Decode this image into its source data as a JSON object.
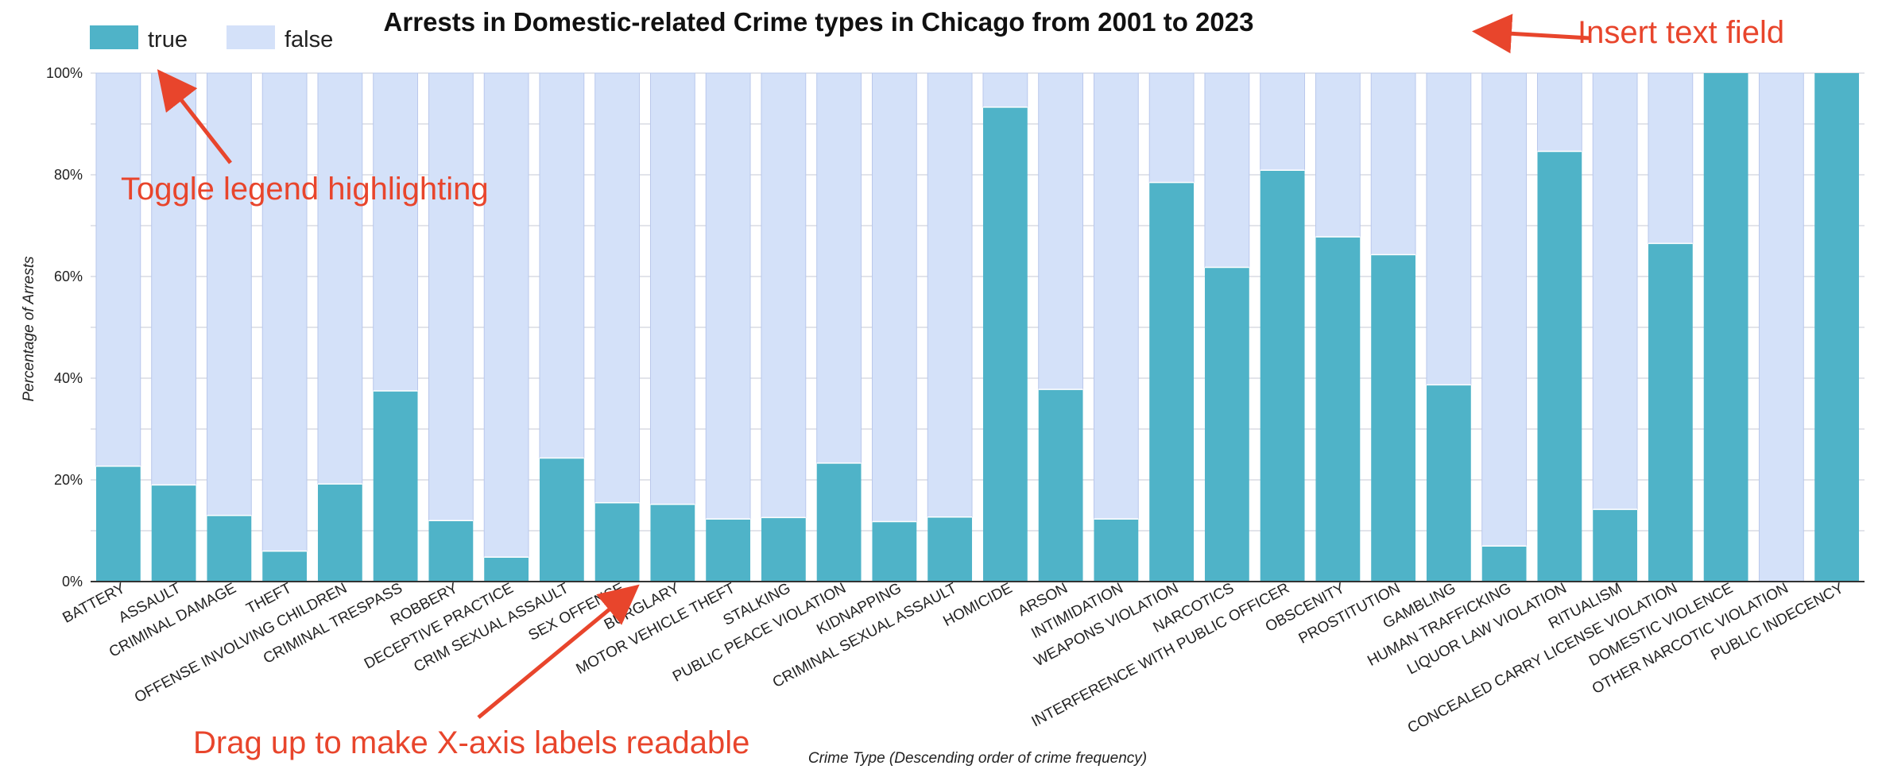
{
  "chart_data": {
    "type": "bar",
    "stacked": true,
    "title": "Arrests in Domestic-related Crime types in Chicago from 2001 to 2023",
    "xlabel": "Crime Type (Descending order of crime frequency)",
    "ylabel": "Percentage of Arrests",
    "ylim": [
      0,
      100
    ],
    "y_ticks": [
      "0%",
      "20%",
      "40%",
      "60%",
      "80%",
      "100%"
    ],
    "grid": true,
    "legend_position": "top-left",
    "colors": {
      "true": "#4fb3c8",
      "false": "#d4e1f9",
      "annotation": "#e8452c",
      "grid": "#c5cad6"
    },
    "categories": [
      "BATTERY",
      "ASSAULT",
      "CRIMINAL DAMAGE",
      "THEFT",
      "OFFENSE INVOLVING CHILDREN",
      "CRIMINAL TRESPASS",
      "ROBBERY",
      "DECEPTIVE PRACTICE",
      "CRIM SEXUAL ASSAULT",
      "SEX OFFENSE",
      "BURGLARY",
      "MOTOR VEHICLE THEFT",
      "STALKING",
      "PUBLIC PEACE VIOLATION",
      "KIDNAPPING",
      "CRIMINAL SEXUAL ASSAULT",
      "HOMICIDE",
      "ARSON",
      "INTIMIDATION",
      "WEAPONS VIOLATION",
      "NARCOTICS",
      "INTERFERENCE WITH PUBLIC OFFICER",
      "OBSCENITY",
      "PROSTITUTION",
      "GAMBLING",
      "HUMAN TRAFFICKING",
      "LIQUOR LAW VIOLATION",
      "RITUALISM",
      "CONCEALED CARRY LICENSE VIOLATION",
      "DOMESTIC VIOLENCE",
      "OTHER NARCOTIC VIOLATION",
      "PUBLIC INDECENCY"
    ],
    "series": [
      {
        "name": "true",
        "values": [
          22.7,
          19,
          13,
          6,
          19.2,
          37.5,
          12,
          4.8,
          24.3,
          15.5,
          15.2,
          12.3,
          12.6,
          23.3,
          11.8,
          12.7,
          93.3,
          37.8,
          12.3,
          78.5,
          61.8,
          80.9,
          67.8,
          64.3,
          38.7,
          7,
          84.6,
          14.2,
          66.5,
          100,
          0,
          100
        ]
      },
      {
        "name": "false",
        "values": [
          77.3,
          81,
          87,
          94,
          80.8,
          62.5,
          88,
          95.2,
          75.7,
          84.5,
          84.8,
          87.7,
          87.4,
          76.7,
          88.2,
          87.3,
          6.7,
          62.2,
          87.7,
          21.5,
          38.2,
          19.1,
          32.2,
          35.7,
          61.3,
          93,
          15.4,
          85.8,
          33.5,
          0,
          100,
          0
        ]
      }
    ]
  },
  "annotations": {
    "insert_text": "Insert text field",
    "toggle_legend": "Toggle legend highlighting",
    "drag_up": "Drag up to make X-axis labels readable"
  }
}
